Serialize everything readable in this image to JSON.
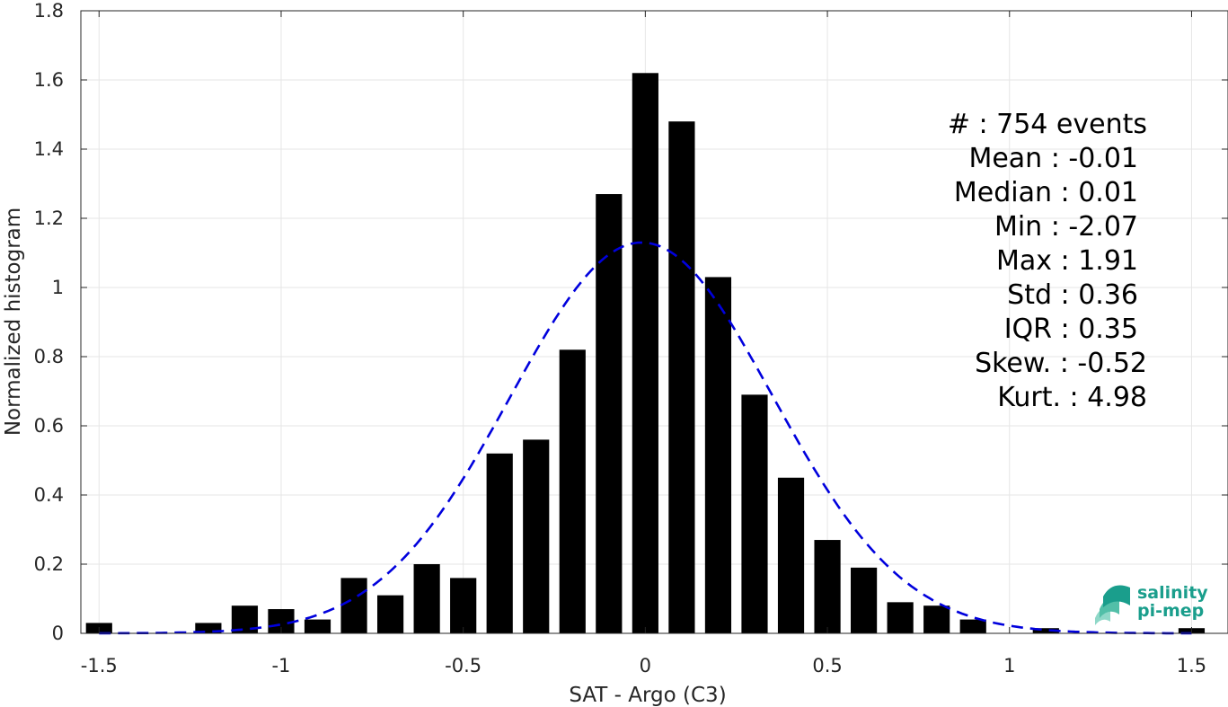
{
  "chart_data": {
    "type": "bar",
    "xlabel": "SAT - Argo (C3)",
    "ylabel": "Normalized histogram",
    "xlim": [
      -1.55,
      1.6
    ],
    "ylim": [
      0,
      1.8
    ],
    "xticks": [
      -1.5,
      -1,
      -0.5,
      0,
      0.5,
      1,
      1.5
    ],
    "xtick_labels": [
      "-1.5",
      "-1",
      "-0.5",
      "0",
      "0.5",
      "1",
      "1.5"
    ],
    "yticks": [
      0,
      0.2,
      0.4,
      0.6,
      0.8,
      1,
      1.2,
      1.4,
      1.6,
      1.8
    ],
    "ytick_labels": [
      "0",
      "0.2",
      "0.4",
      "0.6",
      "0.8",
      "1",
      "1.2",
      "1.4",
      "1.6",
      "1.8"
    ],
    "grid": true,
    "bin_width": 0.1,
    "bar_color": "#000000",
    "bins": [
      {
        "x": -1.5,
        "value": 0.03
      },
      {
        "x": -1.2,
        "value": 0.03
      },
      {
        "x": -1.1,
        "value": 0.08
      },
      {
        "x": -1.0,
        "value": 0.07
      },
      {
        "x": -0.9,
        "value": 0.04
      },
      {
        "x": -0.8,
        "value": 0.16
      },
      {
        "x": -0.7,
        "value": 0.11
      },
      {
        "x": -0.6,
        "value": 0.2
      },
      {
        "x": -0.5,
        "value": 0.16
      },
      {
        "x": -0.4,
        "value": 0.52
      },
      {
        "x": -0.3,
        "value": 0.56
      },
      {
        "x": -0.2,
        "value": 0.82
      },
      {
        "x": -0.1,
        "value": 1.27
      },
      {
        "x": 0.0,
        "value": 1.62
      },
      {
        "x": 0.1,
        "value": 1.48
      },
      {
        "x": 0.2,
        "value": 1.03
      },
      {
        "x": 0.3,
        "value": 0.69
      },
      {
        "x": 0.4,
        "value": 0.45
      },
      {
        "x": 0.5,
        "value": 0.27
      },
      {
        "x": 0.6,
        "value": 0.19
      },
      {
        "x": 0.7,
        "value": 0.09
      },
      {
        "x": 0.8,
        "value": 0.08
      },
      {
        "x": 0.9,
        "value": 0.04
      },
      {
        "x": 1.1,
        "value": 0.015
      },
      {
        "x": 1.5,
        "value": 0.015
      }
    ],
    "fit_curve": {
      "type": "gaussian",
      "mean": -0.01,
      "std": 0.36,
      "peak": 1.13,
      "color": "#0000dd",
      "style": "dashed"
    },
    "annotations": [
      "#  : 754 events",
      "Mean : -0.01",
      "Median : 0.01",
      "Min : -2.07",
      "Max : 1.91",
      "Std : 0.36",
      "IQR : 0.35",
      "Skew. : -0.52",
      "Kurt. : 4.98"
    ]
  },
  "logo": {
    "line1": "salinity",
    "line2": "pi-mep",
    "color": "#1a9e8c"
  }
}
